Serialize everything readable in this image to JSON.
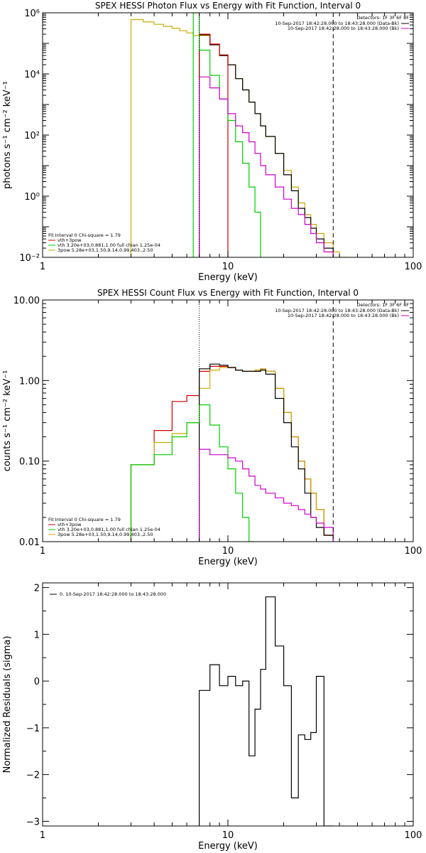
{
  "chart_data": [
    {
      "type": "line",
      "title": "SPEX HESSI Photon Flux vs Energy with Fit Function, Interval 0",
      "xlabel": "Energy (keV)",
      "ylabel": "photons s⁻¹ cm⁻² keV⁻¹",
      "xscale": "log",
      "yscale": "log",
      "xlim": [
        1,
        100
      ],
      "ylim": [
        0.01,
        1000000
      ],
      "x_ticks": [
        {
          "value": 1,
          "label": "1"
        },
        {
          "value": 10,
          "label": "10"
        },
        {
          "value": 100,
          "label": "100"
        }
      ],
      "y_ticks": [
        {
          "value": 0.01,
          "label": "10⁻²"
        },
        {
          "value": 1,
          "label": "10⁰"
        },
        {
          "value": 100,
          "label": "10²"
        },
        {
          "value": 10000,
          "label": "10⁴"
        },
        {
          "value": 1000000,
          "label": "10⁶"
        }
      ],
      "vlines": [
        {
          "x": 7.0,
          "style": "dotted",
          "color": "#000000"
        },
        {
          "x": 37.0,
          "style": "dashed",
          "color": "#000000"
        }
      ],
      "legend_top_right": {
        "header": "Detectors: 1F 3F 6F 8F",
        "entries": [
          {
            "text": "10-Sep-2017 18:42:28.000 to 18:43:28.000 (Data-Bk)",
            "color": "#000000"
          },
          {
            "text": "10-Sep-2017 18:42:28.000 to 18:43:28.000 (Bk)",
            "color": "#cc00cc"
          }
        ]
      },
      "legend_bottom_left": {
        "header": "Fit Interval  0    Chi-square = 1.79",
        "entries": [
          {
            "text": "vth+3pow",
            "color": "#cc0000"
          },
          {
            "text": "vth 3.20e+03,0.881,1.00  full chian 1.25e-04",
            "color": "#00cc00"
          },
          {
            "text": "3pow  5.28e+03,1.50,9.14,0.99,403.,2.50",
            "color": "#ccaa00"
          }
        ]
      },
      "series": [
        {
          "color": "#ccaa00",
          "edges": [
            3,
            3.5,
            4,
            4.5,
            5,
            5.5,
            6,
            6.5,
            7,
            8,
            9,
            10,
            11,
            12,
            13,
            14,
            15,
            16,
            18,
            20,
            22,
            24,
            26,
            28,
            30,
            33,
            37,
            40,
            45
          ],
          "values": [
            600000,
            500000,
            420000,
            360000,
            310000,
            260000,
            220000,
            180000,
            180000,
            90000,
            40000,
            20000,
            7000,
            3000,
            1200,
            500,
            200,
            90,
            25,
            7,
            2,
            0.6,
            0.25,
            0.12,
            0.06,
            0.03,
            0.015,
            0.01
          ]
        },
        {
          "color": "#000000",
          "edges": [
            7,
            8,
            9,
            10,
            11,
            12,
            13,
            14,
            15,
            16,
            18,
            20,
            22,
            24,
            26,
            28,
            30,
            33,
            37
          ],
          "values": [
            190000,
            90000,
            40000,
            20000,
            7000,
            3000,
            1200,
            500,
            200,
            90,
            25,
            5,
            1.5,
            0.4,
            0.2,
            0.09,
            0.04,
            0.02
          ]
        },
        {
          "color": "#cc0000",
          "edges": [
            7,
            8,
            9,
            10
          ],
          "values": [
            200000,
            95000,
            42000
          ]
        },
        {
          "color": "#00cc00",
          "edges": [
            6.5,
            7,
            8,
            9,
            10,
            11,
            12,
            13,
            14,
            15
          ],
          "values": [
            1000000,
            60000,
            9000,
            1500,
            300,
            60,
            12,
            2,
            0.3
          ]
        },
        {
          "color": "#cc00cc",
          "edges": [
            7,
            8,
            9,
            10,
            11,
            12,
            13,
            14,
            15,
            16,
            18,
            20,
            22,
            24,
            26,
            28,
            30,
            33,
            37
          ],
          "values": [
            8000,
            3500,
            1500,
            500,
            200,
            120,
            60,
            25,
            10,
            5,
            2,
            0.8,
            0.4,
            0.25,
            0.12,
            0.06,
            0.03,
            0.015
          ]
        }
      ]
    },
    {
      "type": "line",
      "title": "SPEX HESSI Count Flux vs Energy with Fit Function, Interval 0",
      "xlabel": "Energy (keV)",
      "ylabel": "counts s⁻¹ cm⁻² keV⁻¹",
      "xscale": "log",
      "yscale": "log",
      "xlim": [
        1,
        100
      ],
      "ylim": [
        0.01,
        10
      ],
      "x_ticks": [
        {
          "value": 1,
          "label": "1"
        },
        {
          "value": 10,
          "label": "10"
        },
        {
          "value": 100,
          "label": "100"
        }
      ],
      "y_ticks": [
        {
          "value": 0.01,
          "label": "0.01"
        },
        {
          "value": 0.1,
          "label": "0.10"
        },
        {
          "value": 1,
          "label": "1.00"
        },
        {
          "value": 10,
          "label": "10.00"
        }
      ],
      "vlines": [
        {
          "x": 7.0,
          "style": "dotted",
          "color": "#000000"
        },
        {
          "x": 37.0,
          "style": "dashed",
          "color": "#000000"
        }
      ],
      "legend_top_right": {
        "header": "Detectors: 1F 3F 6F 8F",
        "entries": [
          {
            "text": "10-Sep-2017 18:42:28.000 to 18:43:28.000 (Data-Bk)",
            "color": "#000000"
          },
          {
            "text": "10-Sep-2017 18:42:28.000 to 18:43:28.000 (Bk)",
            "color": "#cc00cc"
          }
        ]
      },
      "legend_bottom_left": {
        "header": "Fit Interval  0    Chi-square = 1.79",
        "entries": [
          {
            "text": "vth+3pow",
            "color": "#cc0000"
          },
          {
            "text": "vth 3.20e+03,0.881,1.00  full chian 1.25e-04",
            "color": "#00cc00"
          },
          {
            "text": "3pow  5.28e+03,1.50,9.14,0.99,403.,2.50",
            "color": "#ccaa00"
          }
        ]
      },
      "series": [
        {
          "color": "#cc0000",
          "edges": [
            3,
            4,
            5,
            6,
            7,
            8,
            9,
            10,
            11,
            12,
            13,
            14,
            15,
            16,
            18,
            20,
            22,
            24,
            26,
            28,
            30,
            33,
            37
          ],
          "values": [
            0.09,
            0.24,
            0.55,
            0.65,
            1.3,
            1.5,
            1.5,
            1.45,
            1.35,
            1.3,
            1.3,
            1.35,
            1.4,
            1.3,
            0.8,
            0.4,
            0.2,
            0.1,
            0.06,
            0.04,
            0.025,
            0.012
          ]
        },
        {
          "color": "#ccaa00",
          "edges": [
            3,
            4,
            5,
            6,
            7,
            8,
            9,
            10,
            11,
            12,
            13,
            14,
            15,
            16,
            18,
            20,
            22,
            24,
            26,
            28,
            30,
            33,
            37
          ],
          "values": [
            0.09,
            0.17,
            0.22,
            0.3,
            0.8,
            1.35,
            1.45,
            1.45,
            1.35,
            1.3,
            1.3,
            1.35,
            1.4,
            1.3,
            0.8,
            0.4,
            0.2,
            0.1,
            0.06,
            0.04,
            0.025,
            0.012
          ]
        },
        {
          "color": "#000000",
          "edges": [
            7,
            8,
            9,
            10,
            11,
            12,
            13,
            14,
            15,
            16,
            18,
            20,
            22,
            24,
            26,
            28,
            30,
            33,
            37
          ],
          "values": [
            1.4,
            1.6,
            1.55,
            1.45,
            1.35,
            1.3,
            1.3,
            1.3,
            1.35,
            1.2,
            0.6,
            0.3,
            0.15,
            0.08,
            0.04,
            0.02,
            0.015,
            0.012
          ]
        },
        {
          "color": "#00cc00",
          "edges": [
            3,
            4,
            5,
            6,
            7,
            8,
            9,
            10,
            11,
            12,
            13,
            14
          ],
          "values": [
            0.09,
            0.12,
            0.2,
            0.3,
            0.5,
            0.28,
            0.15,
            0.08,
            0.04,
            0.02,
            0.01
          ]
        },
        {
          "color": "#cc00cc",
          "edges": [
            7,
            8,
            9,
            10,
            11,
            12,
            13,
            14,
            15,
            16,
            18,
            20,
            22,
            24,
            26,
            28,
            30,
            33,
            37
          ],
          "values": [
            0.14,
            0.12,
            0.12,
            0.11,
            0.1,
            0.08,
            0.065,
            0.05,
            0.045,
            0.04,
            0.035,
            0.03,
            0.028,
            0.025,
            0.022,
            0.02,
            0.017,
            0.015
          ]
        }
      ]
    },
    {
      "type": "line",
      "title": "",
      "xlabel": "Energy (keV)",
      "ylabel": "Normalized Residuals (sigma)",
      "xscale": "log",
      "yscale": "linear",
      "xlim": [
        1,
        100
      ],
      "ylim": [
        -3.1,
        2.1
      ],
      "x_ticks": [
        {
          "value": 1,
          "label": "1"
        },
        {
          "value": 10,
          "label": "10"
        },
        {
          "value": 100,
          "label": "100"
        }
      ],
      "y_ticks": [
        {
          "value": -3,
          "label": "−3"
        },
        {
          "value": -2,
          "label": "−2"
        },
        {
          "value": -1,
          "label": "−1"
        },
        {
          "value": 0,
          "label": "0"
        },
        {
          "value": 1,
          "label": "1"
        },
        {
          "value": 2,
          "label": "2"
        }
      ],
      "legend_top_left": {
        "entries": [
          {
            "text": "0. 10-Sep-2017 18:42:28.000 to 18:43:28.000",
            "color": "#000000"
          }
        ]
      },
      "series": [
        {
          "color": "#000000",
          "edges": [
            7,
            8,
            9,
            10,
            11,
            12,
            13,
            14,
            15,
            16,
            18,
            20,
            22,
            24,
            26,
            28,
            30,
            33,
            37
          ],
          "values": [
            -0.2,
            0.35,
            -0.1,
            0.1,
            -0.1,
            0.0,
            -1.6,
            -0.6,
            0.25,
            1.8,
            0.75,
            -0.1,
            -2.5,
            -1.15,
            -1.25,
            -1.1,
            0.1,
            -3.1
          ]
        }
      ]
    }
  ]
}
